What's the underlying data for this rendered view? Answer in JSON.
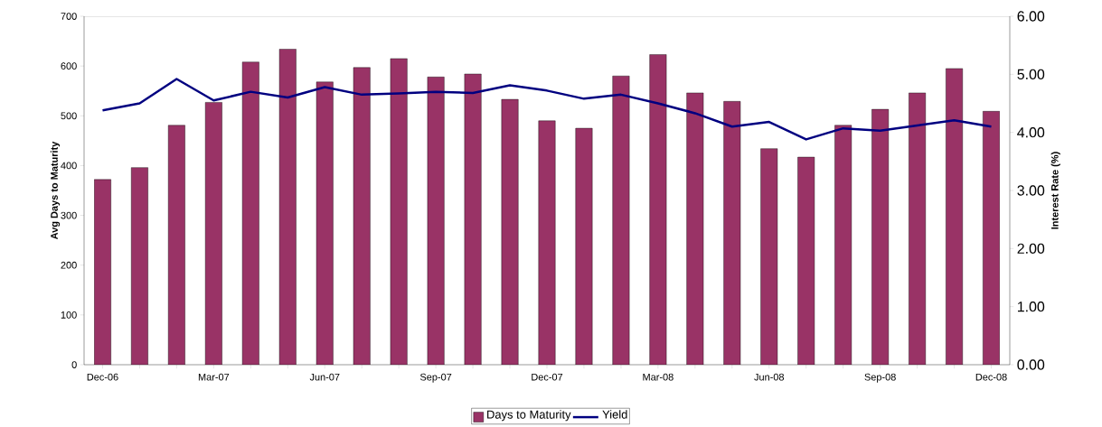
{
  "chart_data": {
    "type": "bar",
    "ylabel": "Avg Days to Maturity",
    "y2label": "Interest Rate (%)",
    "categories": [
      "Dec-06",
      null,
      null,
      "Mar-07",
      null,
      null,
      "Jun-07",
      null,
      null,
      "Sep-07",
      null,
      null,
      "Dec-07",
      null,
      null,
      "Mar-08",
      null,
      null,
      "Jun-08",
      null,
      null,
      "Sep-08",
      null,
      null,
      "Dec-08"
    ],
    "series": [
      {
        "name": "Days to Maturity",
        "color": "#993366",
        "values": [
          372,
          396,
          481,
          527,
          608,
          634,
          568,
          597,
          615,
          578,
          584,
          533,
          490,
          475,
          580,
          623,
          546,
          529,
          434,
          417,
          481,
          513,
          546,
          595,
          509
        ]
      },
      {
        "name": "Yield",
        "type": "line",
        "axis": "y2",
        "color": "#000080",
        "values": [
          4.38,
          4.5,
          4.92,
          4.55,
          4.7,
          4.6,
          4.78,
          4.65,
          4.67,
          4.7,
          4.68,
          4.81,
          4.72,
          4.58,
          4.65,
          4.5,
          4.33,
          4.1,
          4.18,
          3.88,
          4.07,
          4.03,
          4.12,
          4.21,
          4.1
        ]
      }
    ],
    "ylim": [
      0,
      700
    ],
    "yticks": [
      0,
      100,
      200,
      300,
      400,
      500,
      600,
      700
    ],
    "y2lim": [
      0,
      6
    ],
    "y2ticks": [
      {
        "value": 0,
        "label": "0.00"
      },
      {
        "value": 1,
        "label": "1.00"
      },
      {
        "value": 2,
        "label": "2.00"
      },
      {
        "value": 3,
        "label": "3.00"
      },
      {
        "value": 4,
        "label": "4.00"
      },
      {
        "value": 5,
        "label": "5.00"
      },
      {
        "value": 6,
        "label": "6.00"
      }
    ],
    "grid": false,
    "legend": "bottom",
    "marker": "none",
    "line_style": "solid"
  }
}
